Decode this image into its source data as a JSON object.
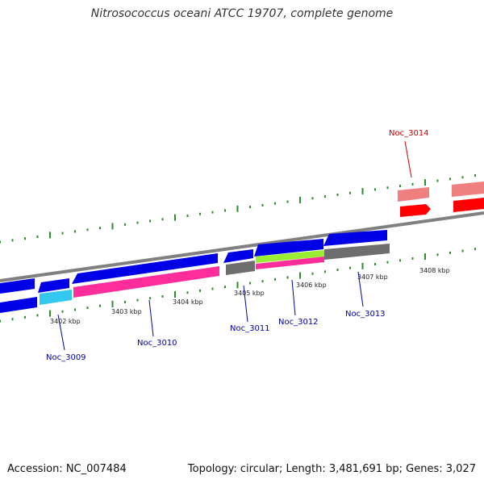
{
  "title": "Nitrosococcus oceani ATCC 19707, complete genome",
  "footer": {
    "accession": "Accession: NC_007484",
    "summary": "Topology: circular; Length: 3,481,691 bp; Genes: 3,027"
  },
  "ticks": [
    "3402 kbp",
    "3403 kbp",
    "3404 kbp",
    "3405 kbp",
    "3406 kbp",
    "3407 kbp",
    "3408 kbp"
  ],
  "genes": [
    {
      "name": "Noc_3009",
      "color": "#0000aa"
    },
    {
      "name": "Noc_3010",
      "color": "#0000aa"
    },
    {
      "name": "Noc_3011",
      "color": "#0000aa"
    },
    {
      "name": "Noc_3012",
      "color": "#0000aa"
    },
    {
      "name": "Noc_3013",
      "color": "#0000aa"
    },
    {
      "name": "Noc_3014",
      "color": "#cc0000"
    }
  ],
  "colors": {
    "cds_forward": "#0000e6",
    "cds_reverse": "#0000e6",
    "highlight_cds": "#ff0000",
    "highlight_light": "#f08080",
    "rna": "#ff2d9b",
    "rna_alt": "#32c8f0",
    "feature_gray": "#6e6e6e",
    "feature_green": "#99ee33",
    "backbone": "#808080",
    "tick": "#2e8b2e"
  }
}
